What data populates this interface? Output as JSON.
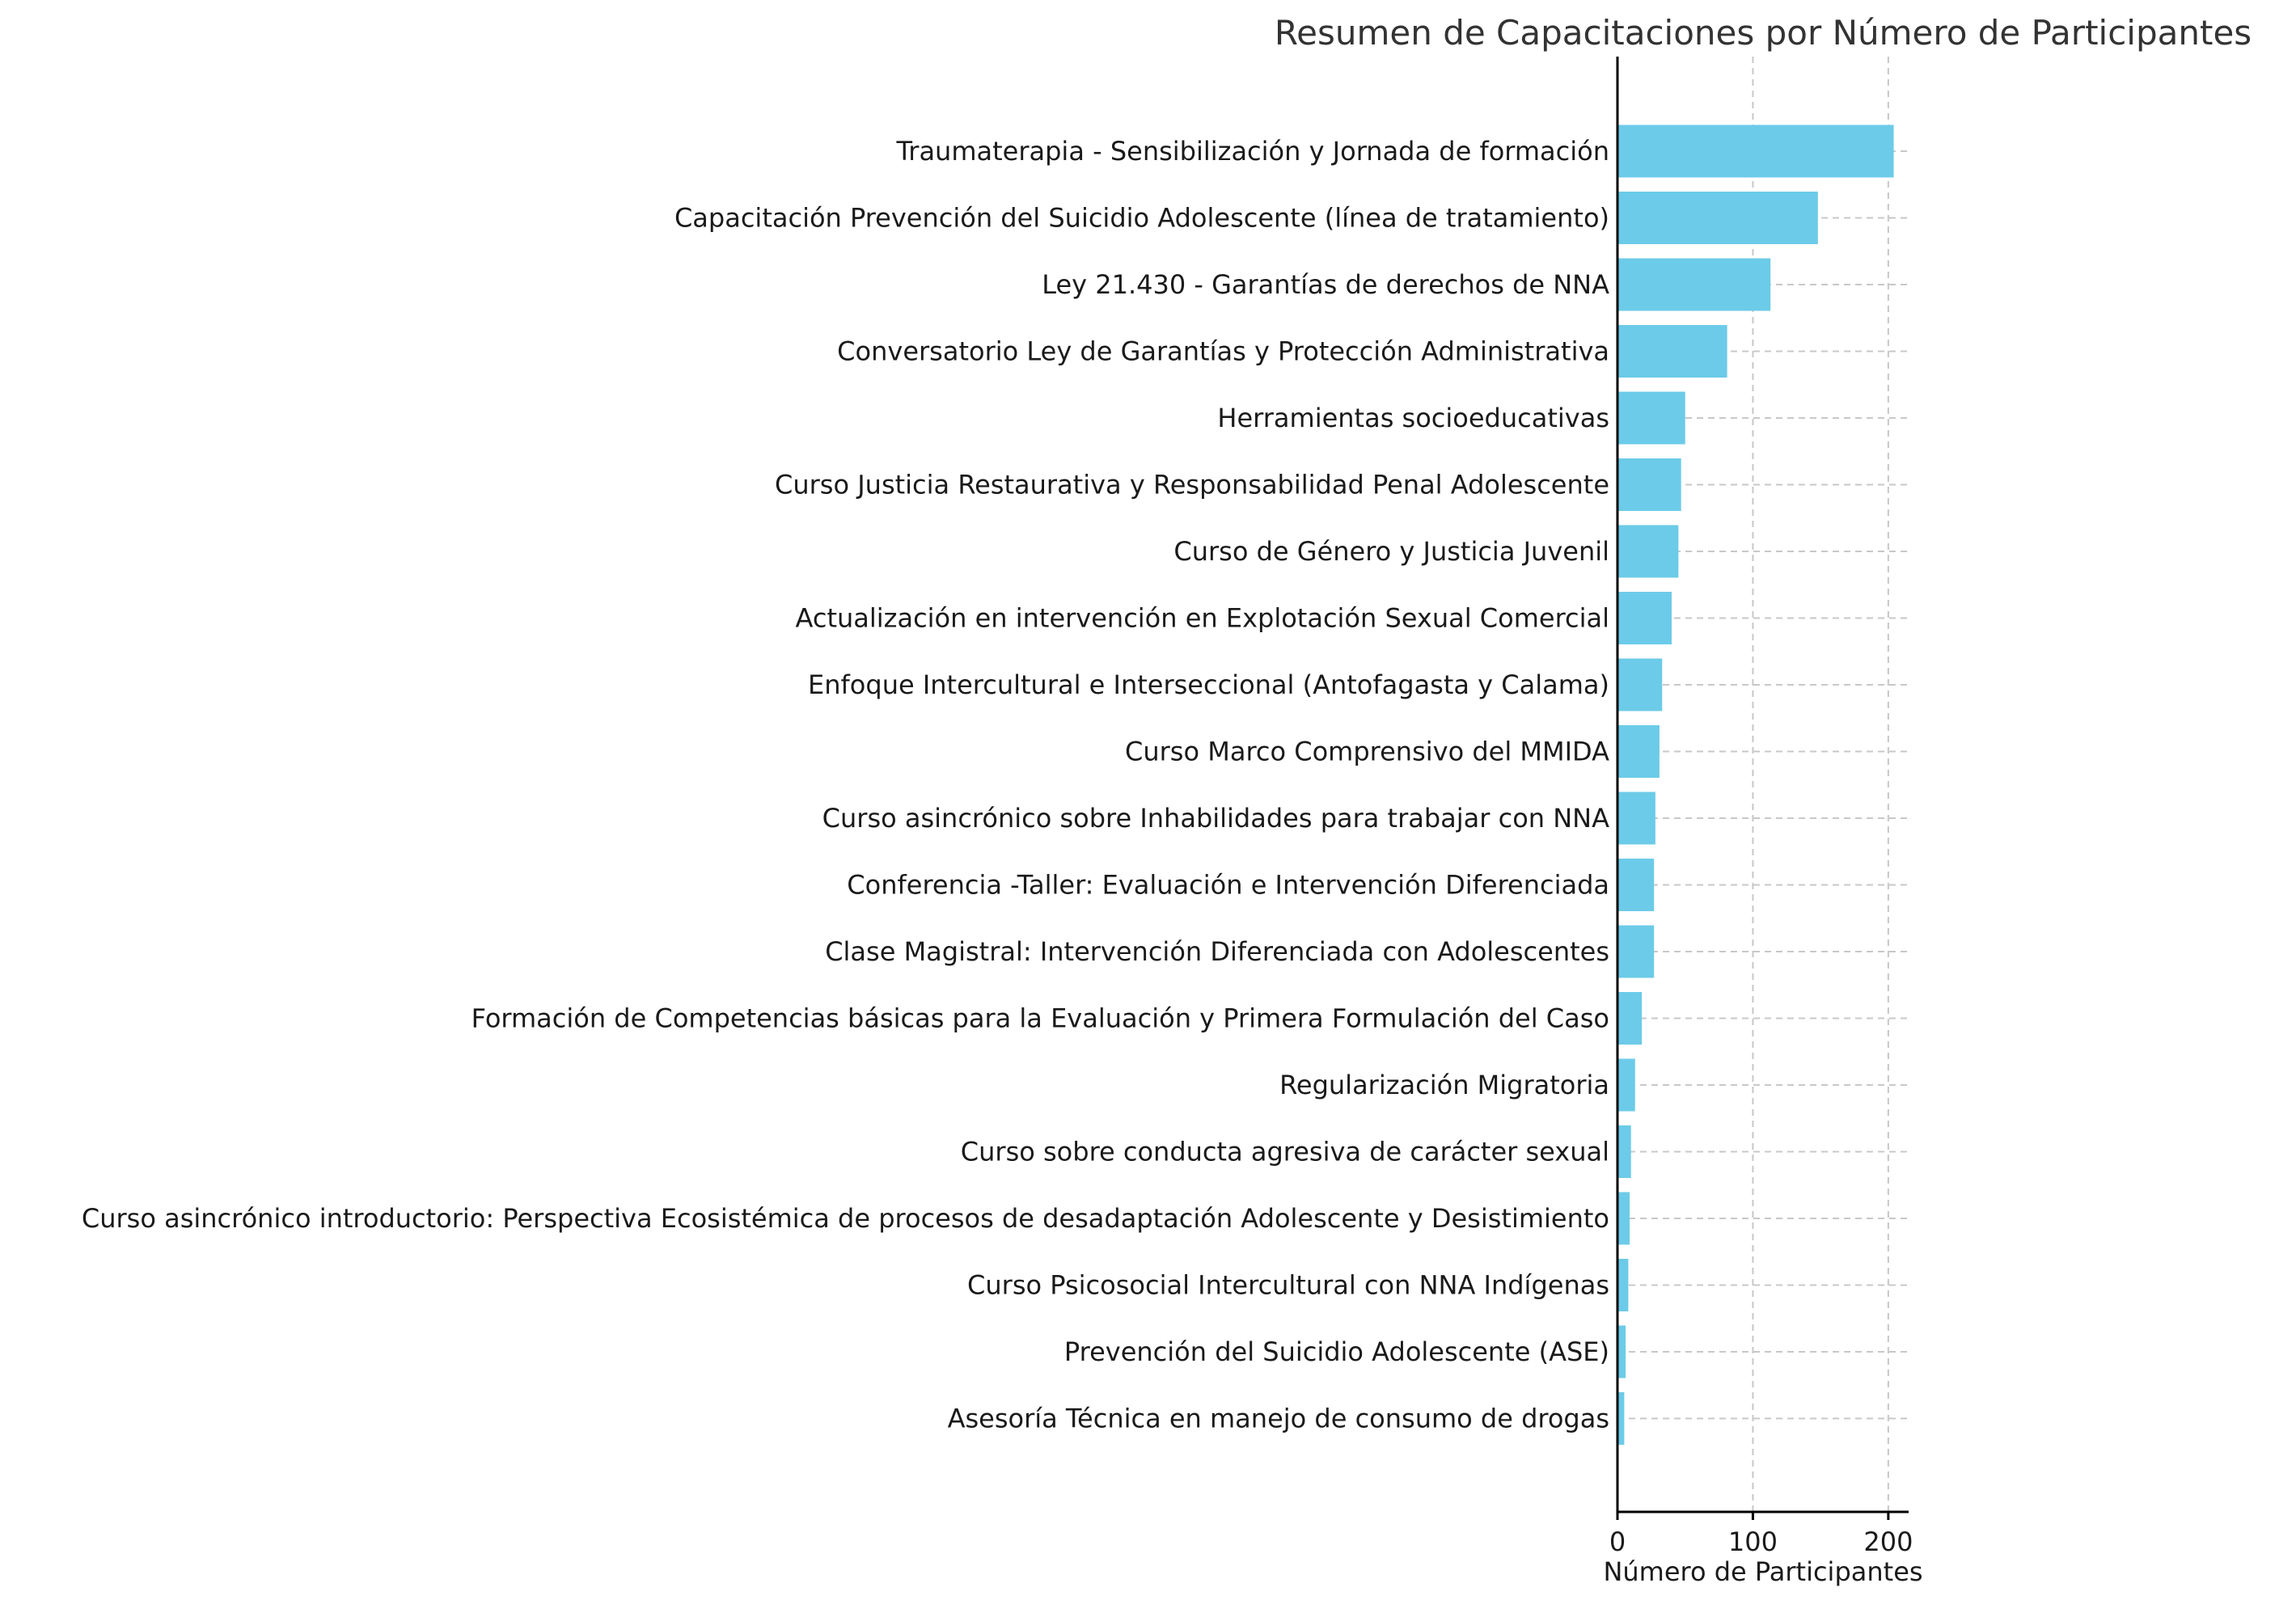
{
  "colors": {
    "bar": "#6ccbe8",
    "axis": "#000000",
    "grid": "#c8c8c8",
    "text": "#1a1a1a",
    "title": "#333333"
  },
  "chart_data": {
    "type": "bar",
    "orientation": "horizontal",
    "title": "Resumen de Capacitaciones por Número de Participantes",
    "xlabel": "Número de Participantes",
    "ylabel": "",
    "xlim": [
      0,
      215
    ],
    "xticks": [
      0,
      100,
      200
    ],
    "xtick_labels": [
      "0",
      "100",
      "200"
    ],
    "grid": true,
    "categories": [
      "Traumaterapia - Sensibilización y Jornada de formación",
      "Capacitación Prevención del Suicidio Adolescente (línea de tratamiento)",
      "Ley 21.430 - Garantías de derechos de NNA",
      "Conversatorio Ley de Garantías y Protección Administrativa",
      "Herramientas socioeducativas",
      "Curso Justicia Restaurativa y Responsabilidad Penal Adolescente",
      "Curso de Género y Justicia Juvenil",
      "Actualización en intervención en Explotación Sexual Comercial",
      "Enfoque Intercultural e Interseccional (Antofagasta y Calama)",
      "Curso Marco Comprensivo del MMIDA",
      "Curso asincrónico sobre Inhabilidades para trabajar con NNA",
      "Conferencia -Taller: Evaluación e Intervención Diferenciada",
      "Clase Magistral: Intervención Diferenciada con Adolescentes",
      "Formación de Competencias básicas para la Evaluación y Primera Formulación del Caso",
      "Regularización Migratoria",
      "Curso sobre conducta agresiva de carácter sexual",
      "Curso asincrónico introductorio: Perspectiva Ecosistémica de procesos de desadaptación Adolescente y Desistimiento",
      "Curso Psicosocial Intercultural con NNA Indígenas",
      "Prevención del Suicidio Adolescente (ASE)",
      "Asesoría Técnica en manejo de consumo de drogas"
    ],
    "values": [
      204,
      148,
      113,
      81,
      50,
      47,
      45,
      40,
      33,
      31,
      28,
      27,
      27,
      18,
      13,
      10,
      9,
      8,
      6,
      5
    ]
  }
}
